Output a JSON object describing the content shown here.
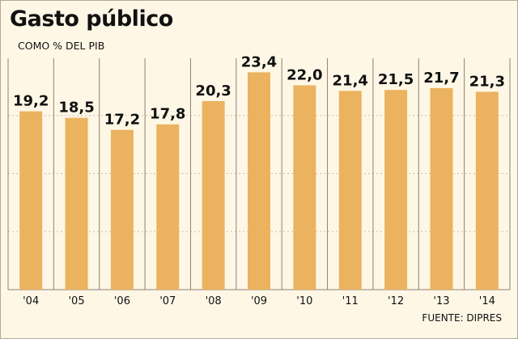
{
  "chart_data": {
    "type": "bar",
    "title": "Gasto público",
    "subtitle": "COMO % DEL PIB",
    "source": "FUENTE: DIPRES",
    "categories": [
      "'04",
      "'05",
      "'06",
      "'07",
      "'08",
      "'09",
      "'10",
      "'11",
      "'12",
      "'13",
      "'14"
    ],
    "values": [
      19.2,
      18.5,
      17.2,
      17.8,
      20.3,
      23.4,
      22.0,
      21.4,
      21.5,
      21.7,
      21.3
    ],
    "value_labels": [
      "19,2",
      "18,5",
      "17,2",
      "17,8",
      "20,3",
      "23,4",
      "22,0",
      "21,4",
      "21,5",
      "21,7",
      "21,3"
    ],
    "ylim": [
      0,
      25
    ],
    "grid": "vertical",
    "colors": {
      "bar": "#ebb35f",
      "background": "#fff7e6",
      "gridline": "#8c8270",
      "text": "#111111"
    }
  }
}
